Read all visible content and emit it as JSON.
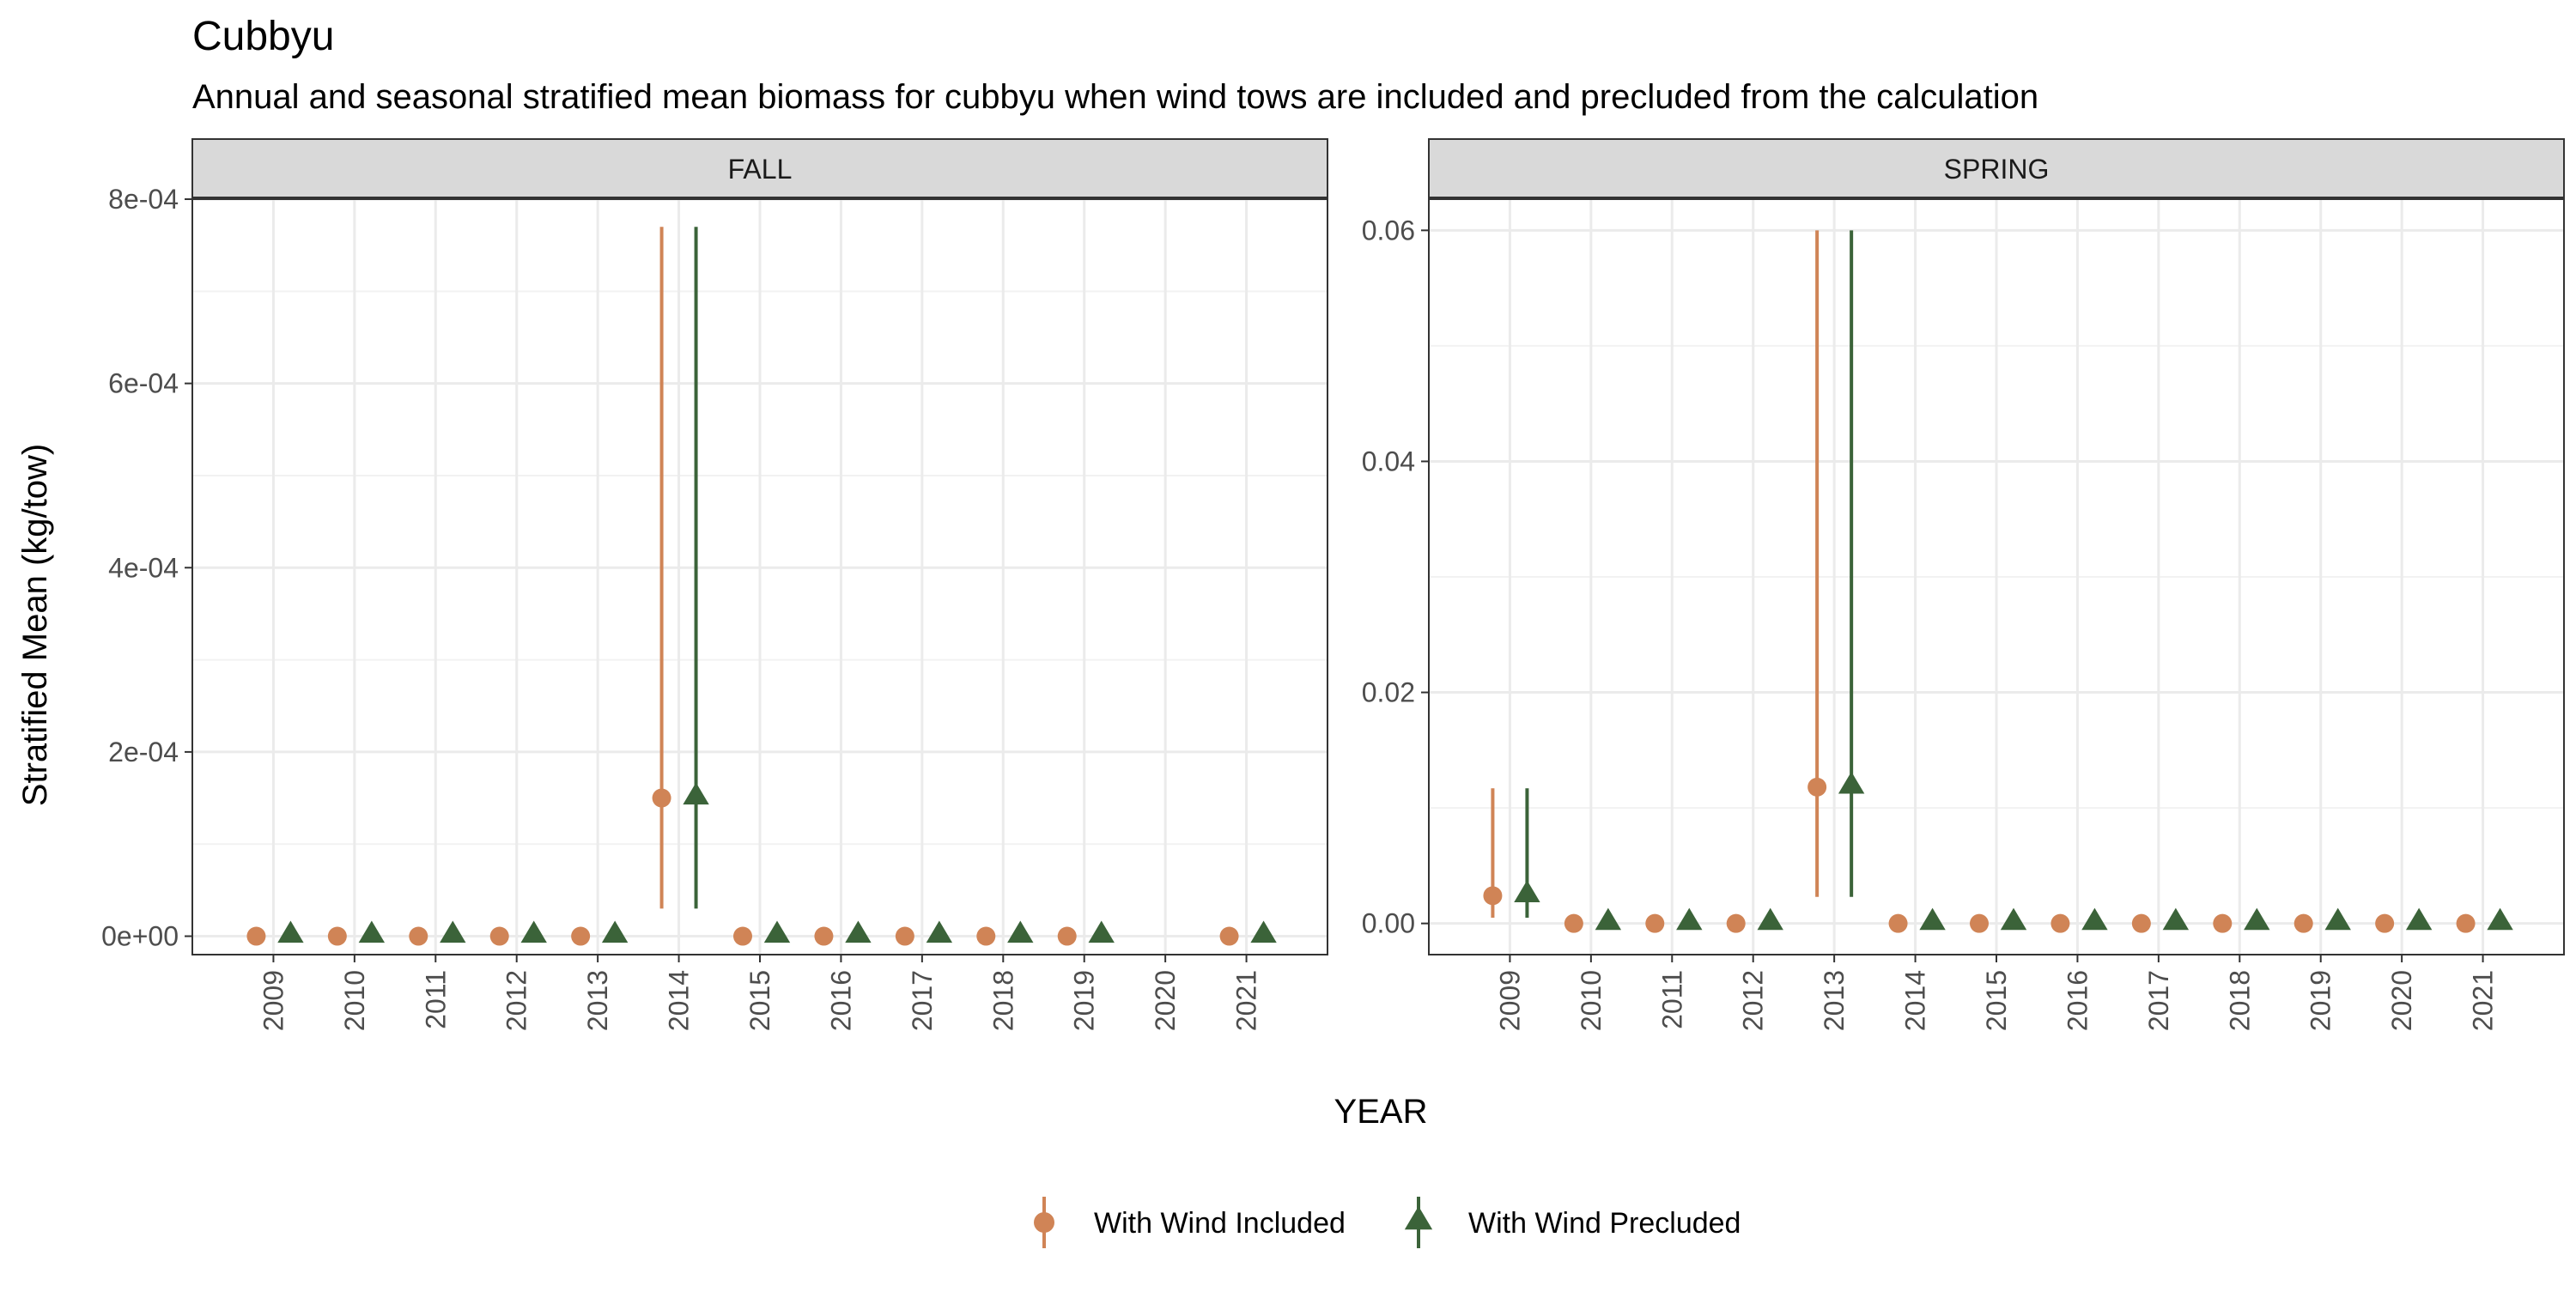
{
  "title": "Cubbyu",
  "subtitle": "Annual and seasonal stratified mean biomass for cubbyu when wind tows are included and precluded from the calculation",
  "xlabel": "YEAR",
  "ylabel": "Stratified Mean (kg/tow)",
  "legend": {
    "position": "bottom",
    "items": [
      {
        "label": "With Wind Included",
        "color": "#d08456",
        "shape": "circle"
      },
      {
        "label": "With Wind Precluded",
        "color": "#3b6339",
        "shape": "triangle"
      }
    ]
  },
  "chart_data": [
    {
      "type": "scatter",
      "panel": "FALL",
      "x": [
        "2009",
        "2010",
        "2011",
        "2012",
        "2013",
        "2014",
        "2015",
        "2016",
        "2017",
        "2018",
        "2019",
        "2020",
        "2021"
      ],
      "ylim": [
        -2e-05,
        0.0008
      ],
      "yticks": [
        0,
        0.0002,
        0.0004,
        0.0006,
        0.0008
      ],
      "ytick_labels": [
        "0e+00",
        "2e-04",
        "4e-04",
        "6e-04",
        "8e-04"
      ],
      "grid": true,
      "series": [
        {
          "name": "With Wind Included",
          "color": "#d08456",
          "shape": "circle",
          "points": [
            {
              "x": "2009",
              "y": 0,
              "lo": 0,
              "hi": 0
            },
            {
              "x": "2010",
              "y": 0,
              "lo": 0,
              "hi": 0
            },
            {
              "x": "2011",
              "y": 0,
              "lo": 0,
              "hi": 0
            },
            {
              "x": "2012",
              "y": 0,
              "lo": 0,
              "hi": 0
            },
            {
              "x": "2013",
              "y": 0,
              "lo": 0,
              "hi": 0
            },
            {
              "x": "2014",
              "y": 0.00015,
              "lo": 3e-05,
              "hi": 0.00077
            },
            {
              "x": "2015",
              "y": 0,
              "lo": 0,
              "hi": 0
            },
            {
              "x": "2016",
              "y": 0,
              "lo": 0,
              "hi": 0
            },
            {
              "x": "2017",
              "y": 0,
              "lo": 0,
              "hi": 0
            },
            {
              "x": "2018",
              "y": 0,
              "lo": 0,
              "hi": 0
            },
            {
              "x": "2019",
              "y": 0,
              "lo": 0,
              "hi": 0
            },
            {
              "x": "2021",
              "y": 0,
              "lo": 0,
              "hi": 0
            }
          ]
        },
        {
          "name": "With Wind Precluded",
          "color": "#3b6339",
          "shape": "triangle",
          "points": [
            {
              "x": "2009",
              "y": 0,
              "lo": 0,
              "hi": 0
            },
            {
              "x": "2010",
              "y": 0,
              "lo": 0,
              "hi": 0
            },
            {
              "x": "2011",
              "y": 0,
              "lo": 0,
              "hi": 0
            },
            {
              "x": "2012",
              "y": 0,
              "lo": 0,
              "hi": 0
            },
            {
              "x": "2013",
              "y": 0,
              "lo": 0,
              "hi": 0
            },
            {
              "x": "2014",
              "y": 0.00015,
              "lo": 3e-05,
              "hi": 0.00077
            },
            {
              "x": "2015",
              "y": 0,
              "lo": 0,
              "hi": 0
            },
            {
              "x": "2016",
              "y": 0,
              "lo": 0,
              "hi": 0
            },
            {
              "x": "2017",
              "y": 0,
              "lo": 0,
              "hi": 0
            },
            {
              "x": "2018",
              "y": 0,
              "lo": 0,
              "hi": 0
            },
            {
              "x": "2019",
              "y": 0,
              "lo": 0,
              "hi": 0
            },
            {
              "x": "2021",
              "y": 0,
              "lo": 0,
              "hi": 0
            }
          ]
        }
      ]
    },
    {
      "type": "scatter",
      "panel": "SPRING",
      "x": [
        "2009",
        "2010",
        "2011",
        "2012",
        "2013",
        "2014",
        "2015",
        "2016",
        "2017",
        "2018",
        "2019",
        "2020",
        "2021"
      ],
      "ylim": [
        -0.0027,
        0.0627
      ],
      "yticks": [
        0,
        0.02,
        0.04,
        0.06
      ],
      "ytick_labels": [
        "0.00",
        "0.02",
        "0.04",
        "0.06"
      ],
      "grid": true,
      "series": [
        {
          "name": "With Wind Included",
          "color": "#d08456",
          "shape": "circle",
          "points": [
            {
              "x": "2009",
              "y": 0.0024,
              "lo": 0.0005,
              "hi": 0.0117
            },
            {
              "x": "2010",
              "y": 0,
              "lo": 0,
              "hi": 0
            },
            {
              "x": "2011",
              "y": 0,
              "lo": 0,
              "hi": 0
            },
            {
              "x": "2012",
              "y": 0,
              "lo": 0,
              "hi": 0
            },
            {
              "x": "2013",
              "y": 0.0118,
              "lo": 0.0023,
              "hi": 0.06
            },
            {
              "x": "2014",
              "y": 0,
              "lo": 0,
              "hi": 0
            },
            {
              "x": "2015",
              "y": 0,
              "lo": 0,
              "hi": 0
            },
            {
              "x": "2016",
              "y": 0,
              "lo": 0,
              "hi": 0
            },
            {
              "x": "2017",
              "y": 0,
              "lo": 0,
              "hi": 0
            },
            {
              "x": "2018",
              "y": 0,
              "lo": 0,
              "hi": 0
            },
            {
              "x": "2019",
              "y": 0,
              "lo": 0,
              "hi": 0
            },
            {
              "x": "2020",
              "y": 0,
              "lo": 0,
              "hi": 0
            },
            {
              "x": "2021",
              "y": 0,
              "lo": 0,
              "hi": 0
            }
          ]
        },
        {
          "name": "With Wind Precluded",
          "color": "#3b6339",
          "shape": "triangle",
          "points": [
            {
              "x": "2009",
              "y": 0.0024,
              "lo": 0.0005,
              "hi": 0.0117
            },
            {
              "x": "2010",
              "y": 0,
              "lo": 0,
              "hi": 0
            },
            {
              "x": "2011",
              "y": 0,
              "lo": 0,
              "hi": 0
            },
            {
              "x": "2012",
              "y": 0,
              "lo": 0,
              "hi": 0
            },
            {
              "x": "2013",
              "y": 0.0118,
              "lo": 0.0023,
              "hi": 0.06
            },
            {
              "x": "2014",
              "y": 0,
              "lo": 0,
              "hi": 0
            },
            {
              "x": "2015",
              "y": 0,
              "lo": 0,
              "hi": 0
            },
            {
              "x": "2016",
              "y": 0,
              "lo": 0,
              "hi": 0
            },
            {
              "x": "2017",
              "y": 0,
              "lo": 0,
              "hi": 0
            },
            {
              "x": "2018",
              "y": 0,
              "lo": 0,
              "hi": 0
            },
            {
              "x": "2019",
              "y": 0,
              "lo": 0,
              "hi": 0
            },
            {
              "x": "2020",
              "y": 0,
              "lo": 0,
              "hi": 0
            },
            {
              "x": "2021",
              "y": 0,
              "lo": 0,
              "hi": 0
            }
          ]
        }
      ]
    }
  ]
}
